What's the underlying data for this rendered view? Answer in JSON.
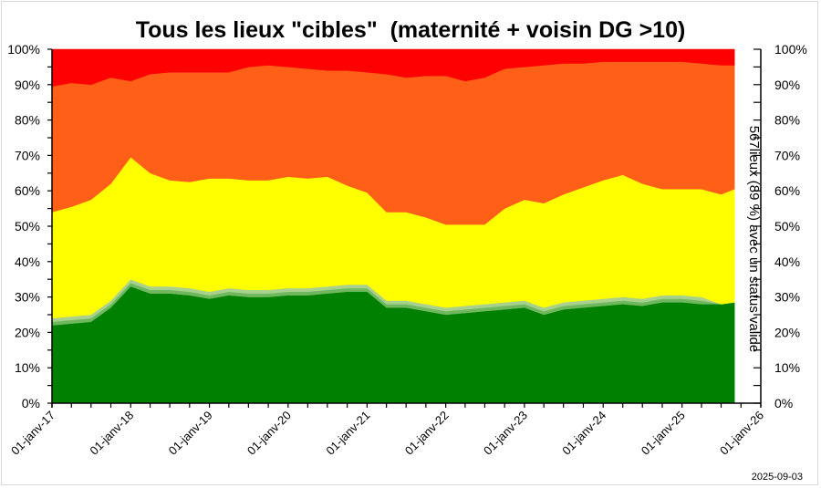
{
  "chart_data": {
    "type": "area",
    "stacked": true,
    "title": "Tous les lieux \"cibles\"  (maternité + voisin DG >10)",
    "ylabel_right": "567lieux (89 %) avec un status valide",
    "footer_date": "2025-09-03",
    "ylim": [
      0,
      100
    ],
    "xlim": [
      "2017-01-01",
      "2026-01-01"
    ],
    "y_ticks": [
      "0%",
      "10%",
      "20%",
      "30%",
      "40%",
      "50%",
      "60%",
      "70%",
      "80%",
      "90%",
      "100%"
    ],
    "x_tick_labels": [
      "01-janv-17",
      "01-janv-18",
      "01-janv-19",
      "01-janv-20",
      "01-janv-21",
      "01-janv-22",
      "01-janv-23",
      "01-janv-24",
      "01-janv-25",
      "01-janv-26"
    ],
    "x_tick_dates": [
      "2017-01-01",
      "2018-01-01",
      "2019-01-01",
      "2020-01-01",
      "2021-01-01",
      "2022-01-01",
      "2023-01-01",
      "2024-01-01",
      "2025-01-01",
      "2026-01-01"
    ],
    "grid": false,
    "legend": "none",
    "x": [
      "2017-01-01",
      "2017-04-01",
      "2017-07-01",
      "2017-10-01",
      "2018-01-01",
      "2018-04-01",
      "2018-07-01",
      "2018-10-01",
      "2019-01-01",
      "2019-04-01",
      "2019-07-01",
      "2019-10-01",
      "2020-01-01",
      "2020-04-01",
      "2020-07-01",
      "2020-10-01",
      "2021-01-01",
      "2021-04-01",
      "2021-07-01",
      "2021-10-01",
      "2022-01-01",
      "2022-04-01",
      "2022-07-01",
      "2022-10-01",
      "2023-01-01",
      "2023-04-01",
      "2023-07-01",
      "2023-10-01",
      "2024-01-01",
      "2024-04-01",
      "2024-07-01",
      "2024-10-01",
      "2025-01-01",
      "2025-04-01",
      "2025-07-01",
      "2025-09-01"
    ],
    "series": [
      {
        "color": "#008000",
        "values": [
          22,
          22.5,
          23,
          27,
          33,
          31,
          31,
          30.5,
          29.5,
          30.5,
          30,
          30,
          30.5,
          30.5,
          31,
          31.5,
          31.5,
          27,
          27,
          26,
          25,
          25.5,
          26,
          26.5,
          27,
          25,
          26.5,
          27,
          27.5,
          28,
          27.5,
          28.5,
          28.5,
          28,
          28,
          28.5
        ]
      },
      {
        "color": "#70B85E",
        "values": [
          1,
          1,
          1,
          1,
          1,
          1,
          1,
          1,
          1,
          1,
          1,
          1,
          1,
          1,
          1,
          1,
          1,
          1,
          1,
          1,
          1,
          1,
          1,
          1,
          1,
          1,
          1,
          1,
          1,
          1,
          1,
          1,
          1,
          1,
          0,
          0
        ]
      },
      {
        "color": "#A9D18E",
        "values": [
          1,
          1,
          1,
          1,
          1,
          1,
          1,
          1,
          1,
          1,
          1,
          1,
          1,
          1,
          1,
          1,
          1,
          1,
          1,
          1,
          1,
          1,
          1,
          1,
          1,
          1,
          1,
          1,
          1,
          1,
          1,
          1,
          1,
          1,
          0,
          0
        ]
      },
      {
        "color": "#FFFF00",
        "values": [
          30,
          31,
          32.5,
          33,
          34.5,
          32,
          30,
          30,
          32,
          31,
          31,
          31,
          31.5,
          31,
          31,
          28,
          26,
          25,
          25,
          24.5,
          23.5,
          23,
          22.5,
          26.5,
          28.5,
          29.5,
          30.5,
          32,
          33.5,
          34.5,
          32.5,
          30,
          30,
          30.5,
          31,
          32
        ]
      },
      {
        "color": "#FF5F17",
        "values": [
          35.5,
          35,
          32.5,
          30,
          21.5,
          28,
          30.5,
          31,
          30,
          30,
          32,
          32.5,
          31,
          31,
          30,
          32.5,
          34,
          39,
          38,
          40,
          42,
          40.5,
          41.5,
          39.5,
          37.5,
          39,
          37,
          35,
          33.5,
          32,
          34.5,
          36,
          36,
          35.5,
          36.5,
          35
        ]
      },
      {
        "color": "#FF0000",
        "values": [
          10.5,
          9.5,
          10,
          8,
          9,
          7,
          6.5,
          6.5,
          6.5,
          6.5,
          5,
          4.5,
          5,
          5.5,
          6,
          6,
          6.5,
          7,
          8,
          7.5,
          7.5,
          9,
          8,
          5.5,
          5,
          4.5,
          4,
          4,
          3.5,
          3.5,
          3.5,
          3.5,
          3.5,
          4,
          4.5,
          4.5
        ]
      }
    ]
  }
}
